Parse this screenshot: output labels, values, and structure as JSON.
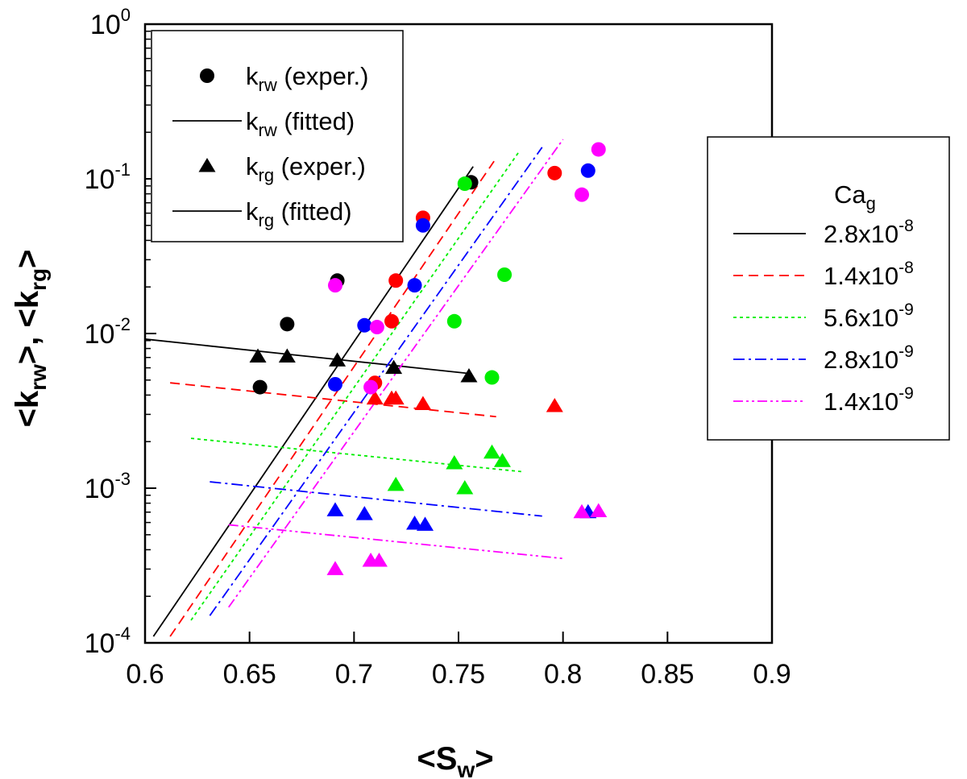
{
  "chart_data": {
    "type": "scatter",
    "title": "",
    "xlabel": {
      "main": "<S",
      "sub": "w",
      "end": ">"
    },
    "ylabel": {
      "p1": "<k",
      "sub1": "rw",
      "p2": ">, <k",
      "sub2": "rg",
      "p3": ">"
    },
    "x_scale": "linear",
    "y_scale": "log",
    "xlim": [
      0.6,
      0.9
    ],
    "ylim": [
      0.0001,
      1
    ],
    "x_ticks": [
      "0.6",
      "0.65",
      "0.7",
      "0.75",
      "0.8",
      "0.85",
      "0.9"
    ],
    "y_ticks": [
      {
        "base": "10",
        "exp": "-4"
      },
      {
        "base": "10",
        "exp": "-3"
      },
      {
        "base": "10",
        "exp": "-2"
      },
      {
        "base": "10",
        "exp": "-1"
      },
      {
        "base": "10",
        "exp": "0"
      }
    ],
    "grid": false,
    "legend_markers": {
      "placement": "top-left",
      "entries": [
        {
          "symbol": "circle",
          "k": "k",
          "sub": "rw",
          "rest": " (exper.)"
        },
        {
          "symbol": "line",
          "k": "k",
          "sub": "rw",
          "rest": " (fitted)"
        },
        {
          "symbol": "triangle",
          "k": "k",
          "sub": "rg",
          "rest": " (exper.)"
        },
        {
          "symbol": "line",
          "k": "k",
          "sub": "rg",
          "rest": " (fitted)"
        }
      ]
    },
    "legend_series": {
      "placement": "right",
      "title": {
        "main": "Ca",
        "sub": "g"
      },
      "entries": [
        {
          "base": "2.8x10",
          "exp": "-8"
        },
        {
          "base": "1.4x10",
          "exp": "-8"
        },
        {
          "base": "5.6x10",
          "exp": "-9"
        },
        {
          "base": "2.8x10",
          "exp": "-9"
        },
        {
          "base": "1.4x10",
          "exp": "-9"
        }
      ]
    },
    "series": [
      {
        "name": "2.8x10^-8",
        "color": "#000000",
        "dash": "",
        "krw_points": [
          [
            0.655,
            0.0045
          ],
          [
            0.668,
            0.0115
          ],
          [
            0.692,
            0.022
          ],
          [
            0.717,
            0.051
          ],
          [
            0.756,
            0.095
          ]
        ],
        "krg_points": [
          [
            0.654,
            0.0071
          ],
          [
            0.668,
            0.0071
          ],
          [
            0.692,
            0.0067
          ],
          [
            0.719,
            0.006
          ],
          [
            0.755,
            0.0053
          ]
        ],
        "krw_fit": [
          [
            0.604,
            0.00011
          ],
          [
            0.757,
            0.12
          ]
        ],
        "krg_fit": [
          [
            0.6,
            0.0092
          ],
          [
            0.756,
            0.0055
          ]
        ]
      },
      {
        "name": "1.4x10^-8",
        "color": "#ff0000",
        "dash": "12,7",
        "krw_points": [
          [
            0.71,
            0.0048
          ],
          [
            0.718,
            0.012
          ],
          [
            0.72,
            0.022
          ],
          [
            0.733,
            0.056
          ],
          [
            0.796,
            0.109
          ]
        ],
        "krg_points": [
          [
            0.71,
            0.0038
          ],
          [
            0.718,
            0.0038
          ],
          [
            0.72,
            0.0038
          ],
          [
            0.733,
            0.0035
          ],
          [
            0.796,
            0.0034
          ]
        ],
        "krw_fit": [
          [
            0.612,
            0.00011
          ],
          [
            0.767,
            0.13
          ]
        ],
        "krg_fit": [
          [
            0.612,
            0.0048
          ],
          [
            0.768,
            0.0029
          ]
        ]
      },
      {
        "name": "5.6x10^-9",
        "color": "#00ee00",
        "dash": "4,4",
        "krw_points": [
          [
            0.719,
            0.048
          ],
          [
            0.748,
            0.012
          ],
          [
            0.753,
            0.093
          ],
          [
            0.766,
            0.0052
          ],
          [
            0.772,
            0.024
          ]
        ],
        "krg_points": [
          [
            0.72,
            0.00105
          ],
          [
            0.748,
            0.00145
          ],
          [
            0.753,
            0.001
          ],
          [
            0.766,
            0.0017
          ],
          [
            0.771,
            0.0015
          ]
        ],
        "krw_fit": [
          [
            0.622,
            0.00014
          ],
          [
            0.779,
            0.15
          ]
        ],
        "krg_fit": [
          [
            0.622,
            0.0021
          ],
          [
            0.78,
            0.00128
          ]
        ]
      },
      {
        "name": "2.8x10^-9",
        "color": "#0000ff",
        "dash": "14,5,3,5",
        "krw_points": [
          [
            0.691,
            0.0047
          ],
          [
            0.705,
            0.0113
          ],
          [
            0.729,
            0.0205
          ],
          [
            0.733,
            0.05
          ],
          [
            0.812,
            0.113
          ]
        ],
        "krg_points": [
          [
            0.691,
            0.00072
          ],
          [
            0.705,
            0.00068
          ],
          [
            0.729,
            0.00059
          ],
          [
            0.734,
            0.00058
          ],
          [
            0.812,
            0.0007
          ]
        ],
        "krw_fit": [
          [
            0.631,
            0.00015
          ],
          [
            0.79,
            0.16
          ]
        ],
        "krg_fit": [
          [
            0.631,
            0.0011
          ],
          [
            0.79,
            0.00066
          ]
        ]
      },
      {
        "name": "1.4x10^-9",
        "color": "#ff00ff",
        "dash": "12,4,3,4,3,4",
        "krw_points": [
          [
            0.691,
            0.0205
          ],
          [
            0.708,
            0.0045
          ],
          [
            0.711,
            0.011
          ],
          [
            0.809,
            0.079
          ],
          [
            0.817,
            0.155
          ]
        ],
        "krg_points": [
          [
            0.691,
            0.0003
          ],
          [
            0.708,
            0.00034
          ],
          [
            0.712,
            0.00034
          ],
          [
            0.809,
            0.0007
          ],
          [
            0.817,
            0.00071
          ]
        ],
        "krw_fit": [
          [
            0.64,
            0.00017
          ],
          [
            0.8,
            0.18
          ]
        ],
        "krg_fit": [
          [
            0.64,
            0.00058
          ],
          [
            0.801,
            0.00035
          ]
        ]
      }
    ]
  }
}
